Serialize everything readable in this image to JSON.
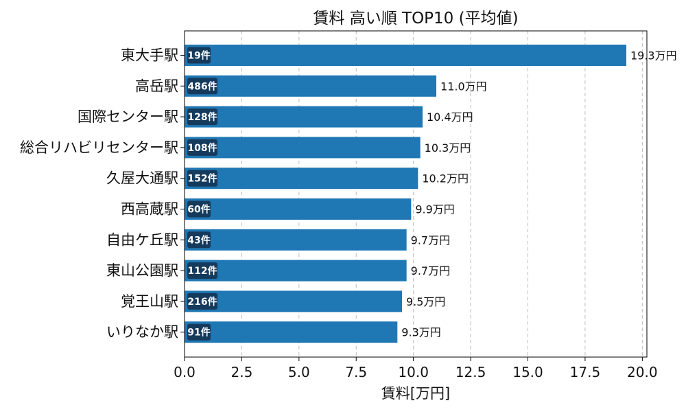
{
  "chart_data": {
    "type": "bar",
    "orientation": "horizontal",
    "title": "賃料 高い順 TOP10 (平均値)",
    "xlabel": "賃料[万円]",
    "ylabel": "",
    "xlim": [
      0,
      20.2
    ],
    "xticks": [
      "0.0",
      "2.5",
      "5.0",
      "7.5",
      "10.0",
      "12.5",
      "15.0",
      "17.5",
      "20.0"
    ],
    "grid": "x-dashed",
    "bar_color": "#1f77b4",
    "badge_color": "#153a5c",
    "categories": [
      "東大手駅",
      "高岳駅",
      "国際センター駅",
      "総合リハビリセンター駅",
      "久屋大通駅",
      "西高蔵駅",
      "自由ケ丘駅",
      "東山公園駅",
      "覚王山駅",
      "いりなか駅"
    ],
    "values": [
      19.3,
      11.0,
      10.4,
      10.3,
      10.2,
      9.9,
      9.7,
      9.7,
      9.5,
      9.3
    ],
    "value_labels": [
      "19.3万円",
      "11.0万円",
      "10.4万円",
      "10.3万円",
      "10.2万円",
      "9.9万円",
      "9.7万円",
      "9.7万円",
      "9.5万円",
      "9.3万円"
    ],
    "counts": [
      "19件",
      "486件",
      "128件",
      "108件",
      "152件",
      "60件",
      "43件",
      "112件",
      "216件",
      "91件"
    ]
  }
}
